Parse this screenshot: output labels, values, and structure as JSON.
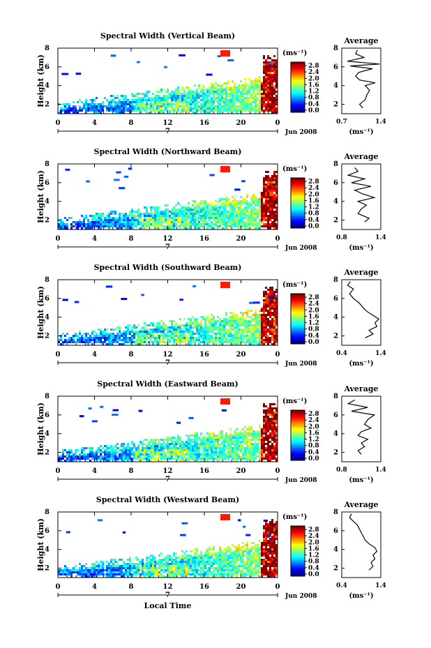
{
  "chart_data": [
    {
      "type": "heatmap",
      "title": "Spectral Width (Vertical Beam)",
      "ylabel": "Height (km)",
      "yticks": [
        "2",
        "4",
        "6",
        "8"
      ],
      "xticks": [
        "0",
        "4",
        "8",
        "12",
        "16",
        "20",
        "0"
      ],
      "xlim": [
        0,
        24
      ],
      "ylim": [
        1,
        8
      ],
      "date_marker": "7",
      "date_label": "Jun 2008",
      "colorbar": {
        "unit": "(ms⁻¹)",
        "labels": [
          "2.8",
          "2.4",
          "2.0",
          "1.6",
          "1.2",
          "0.8",
          "0.4",
          "0.0"
        ]
      },
      "profile": {
        "title": "Average",
        "xticks": [
          "0.7",
          "1.4"
        ],
        "xlim": [
          0.7,
          1.4
        ],
        "yticks": [
          "2",
          "4",
          "6",
          "8"
        ],
        "xlabel": "(ms⁻¹)",
        "heights": [
          1.6,
          2.0,
          2.5,
          3.0,
          3.5,
          4.0,
          4.3,
          4.6,
          5.0,
          5.4,
          5.8,
          6.1,
          6.3,
          6.6,
          7.0,
          7.4,
          7.8
        ],
        "values": [
          1.08,
          1.02,
          1.12,
          1.15,
          1.2,
          1.12,
          1.3,
          1.02,
          0.95,
          1.0,
          1.25,
          0.85,
          1.38,
          0.8,
          1.1,
          0.95,
          0.98
        ]
      }
    },
    {
      "type": "heatmap",
      "title": "Spectral Width (Northward Beam)",
      "ylabel": "Height (km)",
      "yticks": [
        "2",
        "4",
        "6",
        "8"
      ],
      "xticks": [
        "0",
        "4",
        "8",
        "12",
        "16",
        "20",
        "0"
      ],
      "xlim": [
        0,
        24
      ],
      "ylim": [
        1,
        8
      ],
      "date_marker": "7",
      "date_label": "Jun 2008",
      "colorbar": {
        "unit": "(ms⁻¹)",
        "labels": [
          "2.8",
          "2.4",
          "2.0",
          "1.6",
          "1.2",
          "0.8",
          "0.4",
          "0.0"
        ]
      },
      "profile": {
        "title": "Average",
        "xticks": [
          "0.8",
          "1.4"
        ],
        "xlim": [
          0.8,
          1.4
        ],
        "yticks": [
          "2",
          "4",
          "6",
          "8"
        ],
        "xlabel": "(ms⁻¹)",
        "heights": [
          1.8,
          2.2,
          2.7,
          3.2,
          3.6,
          4.0,
          4.4,
          4.8,
          5.2,
          5.6,
          6.0,
          6.4,
          6.8,
          7.2,
          7.6
        ],
        "values": [
          1.15,
          1.22,
          1.05,
          1.1,
          1.18,
          1.05,
          1.3,
          1.12,
          1.0,
          1.25,
          0.95,
          1.15,
          0.9,
          1.05,
          1.0
        ]
      }
    },
    {
      "type": "heatmap",
      "title": "Spectral Width (Southward Beam)",
      "ylabel": "Height (km)",
      "yticks": [
        "2",
        "4",
        "6",
        "8"
      ],
      "xticks": [
        "0",
        "4",
        "8",
        "12",
        "16",
        "20",
        "0"
      ],
      "xlim": [
        0,
        24
      ],
      "ylim": [
        1,
        8
      ],
      "date_marker": "7",
      "date_label": "Jun 2008",
      "colorbar": {
        "unit": "(ms⁻¹)",
        "labels": [
          "2.8",
          "2.4",
          "2.0",
          "1.6",
          "1.2",
          "0.8",
          "0.4",
          "0.0"
        ]
      },
      "profile": {
        "title": "Average",
        "xticks": [
          "0.4",
          "1.4"
        ],
        "xlim": [
          0.4,
          1.4
        ],
        "yticks": [
          "2",
          "4",
          "6",
          "8"
        ],
        "xlabel": "(ms⁻¹)",
        "heights": [
          1.8,
          2.2,
          2.6,
          3.0,
          3.4,
          3.8,
          4.2,
          4.6,
          5.0,
          5.5,
          6.0,
          6.5,
          7.0,
          7.4,
          7.8
        ],
        "values": [
          1.0,
          1.2,
          1.1,
          1.3,
          1.25,
          1.35,
          1.2,
          1.05,
          0.95,
          0.85,
          0.7,
          0.6,
          0.7,
          0.55,
          0.62
        ]
      }
    },
    {
      "type": "heatmap",
      "title": "Spectral Width (Eastward Beam)",
      "ylabel": "Height (km)",
      "yticks": [
        "2",
        "4",
        "6",
        "8"
      ],
      "xticks": [
        "0",
        "4",
        "8",
        "12",
        "16",
        "20",
        "0"
      ],
      "xlim": [
        0,
        24
      ],
      "ylim": [
        1,
        8
      ],
      "date_marker": "7",
      "date_label": "Jun 2008",
      "colorbar": {
        "unit": "(ms⁻¹)",
        "labels": [
          "2.8",
          "2.4",
          "2.0",
          "1.6",
          "1.2",
          "0.8",
          "0.4",
          "0.0"
        ]
      },
      "profile": {
        "title": "Average",
        "xticks": [
          "0.8",
          "1.4"
        ],
        "xlim": [
          0.8,
          1.4
        ],
        "yticks": [
          "2",
          "4",
          "6",
          "8"
        ],
        "xlabel": "(ms⁻¹)",
        "heights": [
          1.8,
          2.2,
          2.6,
          3.0,
          3.4,
          3.8,
          4.2,
          4.6,
          5.0,
          5.5,
          6.0,
          6.4,
          6.8,
          7.2,
          7.6
        ],
        "values": [
          1.1,
          1.05,
          1.15,
          1.1,
          1.2,
          1.05,
          1.1,
          1.25,
          1.15,
          1.2,
          1.3,
          0.95,
          1.2,
          0.9,
          1.0
        ]
      }
    },
    {
      "type": "heatmap",
      "title": "Spectral Width (Westward Beam)",
      "ylabel": "Height (km)",
      "yticks": [
        "2",
        "4",
        "6",
        "8"
      ],
      "xticks": [
        "0",
        "4",
        "8",
        "12",
        "16",
        "20",
        "0"
      ],
      "xlim": [
        0,
        24
      ],
      "ylim": [
        1,
        8
      ],
      "date_marker": "7",
      "date_label": "Jun 2008",
      "xlabel": "Local Time",
      "colorbar": {
        "unit": "(ms⁻¹)",
        "labels": [
          "2.8",
          "2.4",
          "2.0",
          "1.6",
          "1.2",
          "0.8",
          "0.4",
          "0.0"
        ]
      },
      "profile": {
        "title": "Average",
        "xticks": [
          "0.4",
          "1.4"
        ],
        "xlim": [
          0.4,
          1.4
        ],
        "yticks": [
          "2",
          "4",
          "6",
          "8"
        ],
        "xlabel": "(ms⁻¹)",
        "heights": [
          1.8,
          2.2,
          2.6,
          3.0,
          3.4,
          3.8,
          4.2,
          4.6,
          5.0,
          5.4,
          5.8,
          6.2,
          6.6,
          7.0,
          7.4,
          7.8
        ],
        "values": [
          1.1,
          1.2,
          1.15,
          1.25,
          1.2,
          1.3,
          1.25,
          1.1,
          1.0,
          0.95,
          0.9,
          0.85,
          0.8,
          0.7,
          0.6,
          0.65
        ]
      }
    }
  ]
}
